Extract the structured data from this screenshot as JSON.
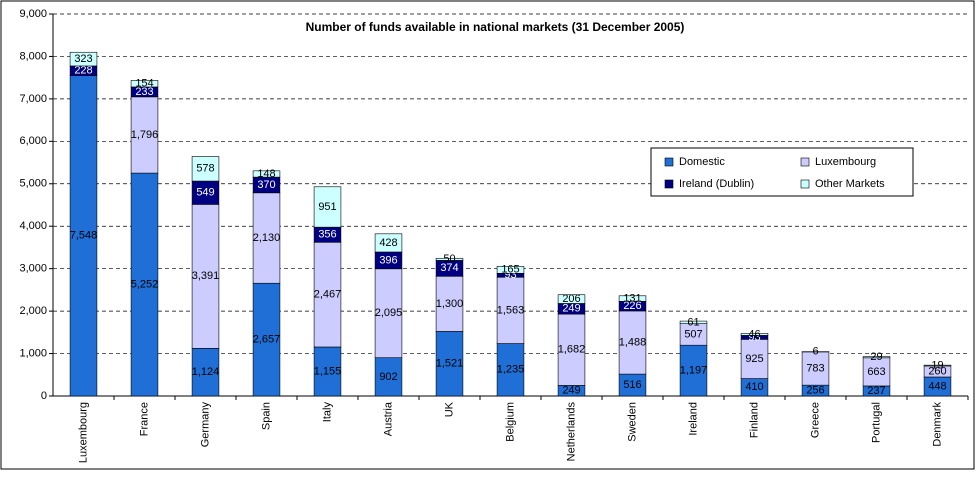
{
  "chart_data": {
    "type": "stacked_bar",
    "title": "Number of funds available in national markets (31 December 2005)",
    "categories": [
      "Luxembourg",
      "France",
      "Germany",
      "Spain",
      "Italy",
      "Austria",
      "UK",
      "Belgium",
      "Netherlands",
      "Sweden",
      "Ireland",
      "Finland",
      "Greece",
      "Portugal",
      "Denmark"
    ],
    "series": [
      {
        "name": "Domestic",
        "color": "#1f6fd6",
        "values": [
          7548,
          5252,
          1124,
          2657,
          1155,
          902,
          1521,
          1235,
          249,
          516,
          1197,
          410,
          256,
          237,
          448
        ],
        "value_labels": [
          "7,548",
          "5,252",
          "1,124",
          "2,657",
          "1,155",
          "902",
          "1,521",
          "1,235",
          "249",
          "516",
          "1,197",
          "410",
          "256",
          "237",
          "448"
        ]
      },
      {
        "name": "Luxembourg",
        "color": "#ccccff",
        "values": [
          null,
          1796,
          3391,
          2130,
          2467,
          2095,
          1300,
          1563,
          1682,
          1488,
          507,
          925,
          783,
          663,
          260
        ],
        "value_labels": [
          null,
          "1,796",
          "3,391",
          "2,130",
          "2,467",
          "2,095",
          "1,300",
          "1,563",
          "1,682",
          "1,488",
          "507",
          "925",
          "783",
          "663",
          "260"
        ]
      },
      {
        "name": "Ireland (Dublin)",
        "color": "#000080",
        "values": [
          228,
          233,
          549,
          370,
          356,
          396,
          374,
          93,
          249,
          226,
          null,
          93,
          null,
          null,
          null
        ],
        "value_labels": [
          "228",
          "233",
          "549",
          "370",
          "356",
          "396",
          "374",
          "93",
          "249",
          "226",
          null,
          "93",
          null,
          null,
          null
        ]
      },
      {
        "name": "Other Markets",
        "color": "#ccffff",
        "values": [
          323,
          154,
          578,
          148,
          951,
          428,
          50,
          165,
          206,
          131,
          61,
          46,
          6,
          29,
          19
        ],
        "value_labels": [
          "323",
          "154",
          "578",
          "148",
          "951",
          "428",
          "50",
          "165",
          "206",
          "131",
          "61",
          "46",
          "6",
          "29",
          "19"
        ]
      }
    ],
    "ylim": [
      0,
      9000
    ],
    "yticks": [
      0,
      {
        "value": 1000,
        "label": "1,000"
      },
      {
        "value": 2000,
        "label": "2,000"
      },
      {
        "value": 3000,
        "label": "3,000"
      },
      {
        "value": 4000,
        "label": "4,000"
      },
      {
        "value": 5000,
        "label": "5,000"
      },
      {
        "value": 6000,
        "label": "6,000"
      },
      {
        "value": 7000,
        "label": "7,000"
      },
      {
        "value": 8000,
        "label": "8,000"
      },
      {
        "value": 9000,
        "label": "9,000"
      }
    ],
    "grid": true
  }
}
